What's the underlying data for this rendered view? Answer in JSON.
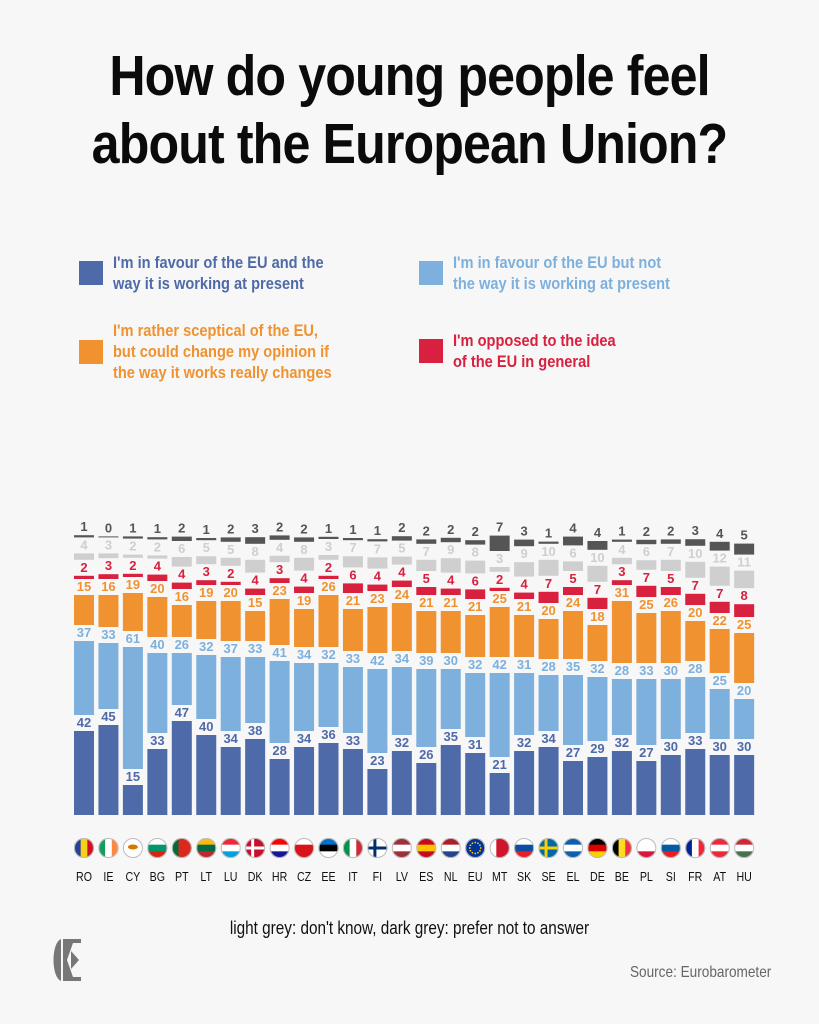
{
  "title_lines": [
    "How do young people feel",
    "about the European Union?"
  ],
  "legend": [
    {
      "key": "favour_working",
      "lines": [
        "I'm in favour of the EU and the",
        "way it is working at present"
      ],
      "color": "#4f6aa8"
    },
    {
      "key": "favour_not_working",
      "lines": [
        "I'm in favour of the EU but not",
        "the way it is working at present"
      ],
      "color": "#7eb0dd"
    },
    {
      "key": "sceptical",
      "lines": [
        "I'm rather sceptical of the EU,",
        "but could change my opinion if",
        "the way it works really changes"
      ],
      "color": "#f0922f"
    },
    {
      "key": "opposed",
      "lines": [
        "I'm opposed to the idea",
        "of the EU in general"
      ],
      "color": "#d8203f"
    }
  ],
  "note": "light grey: don't know, dark grey: prefer not to answer",
  "source": "Source: Eurobarometer",
  "logo": "E-monogram-logo",
  "chart_data": {
    "type": "bar",
    "stacked": true,
    "title": "How do young people feel about the European Union?",
    "xlabel": "",
    "ylabel": "",
    "unit": "%",
    "categories": [
      "RO",
      "IE",
      "CY",
      "BG",
      "PT",
      "LT",
      "LU",
      "DK",
      "HR",
      "CZ",
      "EE",
      "IT",
      "FI",
      "LV",
      "ES",
      "NL",
      "EU",
      "MT",
      "SK",
      "SE",
      "EL",
      "DE",
      "BE",
      "PL",
      "SI",
      "FR",
      "AT",
      "HU"
    ],
    "series": [
      {
        "name": "I'm in favour of the EU and the way it is working at present",
        "color": "#4f6aa8",
        "values": [
          42,
          45,
          15,
          33,
          47,
          40,
          34,
          38,
          28,
          34,
          36,
          33,
          23,
          32,
          26,
          35,
          31,
          21,
          32,
          34,
          27,
          29,
          32,
          27,
          30,
          33,
          30,
          30
        ]
      },
      {
        "name": "I'm in favour of the EU but not the way it is working at present",
        "color": "#7eb0dd",
        "values": [
          37,
          33,
          61,
          40,
          26,
          32,
          37,
          33,
          41,
          34,
          32,
          33,
          42,
          34,
          39,
          30,
          32,
          42,
          31,
          28,
          35,
          32,
          28,
          33,
          30,
          28,
          25,
          20
        ]
      },
      {
        "name": "I'm rather sceptical of the EU, but could change my opinion if the way it works really changes",
        "color": "#f0922f",
        "values": [
          15,
          16,
          19,
          20,
          16,
          19,
          20,
          15,
          23,
          19,
          26,
          21,
          23,
          24,
          21,
          21,
          21,
          25,
          21,
          20,
          24,
          18,
          31,
          25,
          26,
          20,
          22,
          25
        ]
      },
      {
        "name": "I'm opposed to the idea of the EU in general",
        "color": "#d8203f",
        "values": [
          2,
          3,
          2,
          4,
          4,
          3,
          2,
          4,
          3,
          4,
          2,
          6,
          4,
          4,
          5,
          4,
          6,
          2,
          4,
          7,
          5,
          7,
          3,
          7,
          5,
          7,
          7,
          8
        ]
      },
      {
        "name": "Don't know (light grey)",
        "color": "#cfcfcf",
        "values": [
          4,
          3,
          2,
          2,
          6,
          5,
          5,
          8,
          4,
          8,
          3,
          7,
          7,
          5,
          7,
          9,
          8,
          3,
          9,
          10,
          6,
          10,
          4,
          6,
          7,
          10,
          12,
          11
        ]
      },
      {
        "name": "Prefer not to answer (dark grey)",
        "color": "#555555",
        "values": [
          1,
          0,
          1,
          1,
          2,
          1,
          2,
          3,
          2,
          2,
          1,
          1,
          1,
          2,
          2,
          2,
          2,
          7,
          3,
          1,
          4,
          4,
          1,
          2,
          2,
          3,
          4,
          5
        ]
      }
    ],
    "label_colors": [
      "#4f6aa8",
      "#7eb0dd",
      "#f0922f",
      "#d8203f",
      "#cfcfcf",
      "#555555"
    ],
    "flags": [
      "RO",
      "IE",
      "CY",
      "BG",
      "PT",
      "LT",
      "LU",
      "DK",
      "HR",
      "CZ",
      "EE",
      "IT",
      "FI",
      "LV",
      "ES",
      "NL",
      "EU",
      "MT",
      "SK",
      "SE",
      "EL",
      "DE",
      "BE",
      "PL",
      "SI",
      "FR",
      "AT",
      "HU"
    ],
    "grid": false,
    "legend_position": "top"
  }
}
